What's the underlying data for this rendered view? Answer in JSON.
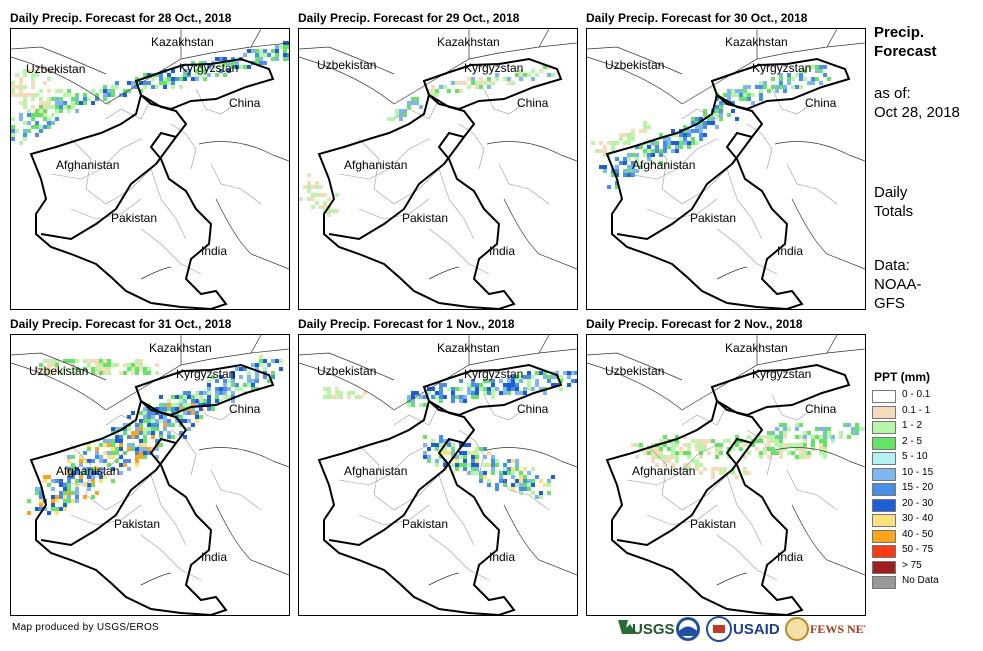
{
  "panels": [
    {
      "title": "Daily Precip. Forecast for 28 Oct., 2018"
    },
    {
      "title": "Daily Precip. Forecast for 29 Oct., 2018"
    },
    {
      "title": "Daily Precip. Forecast for 30 Oct., 2018"
    },
    {
      "title": "Daily Precip. Forecast for 31 Oct., 2018"
    },
    {
      "title": "Daily Precip. Forecast for 1 Nov., 2018"
    },
    {
      "title": "Daily Precip. Forecast for 2 Nov., 2018"
    }
  ],
  "countries": {
    "kazakhstan": "Kazakhstan",
    "uzbekistan": "Uzbekistan",
    "kyrgyzstan": "Kyrgyzstan",
    "china": "China",
    "afghanistan": "Afghanistan",
    "pakistan": "Pakistan",
    "india": "India"
  },
  "side": {
    "title_line1": "Precip.",
    "title_line2": "Forecast",
    "asof_line1": "as of:",
    "asof_line2": "Oct 28, 2018",
    "daily_line1": "Daily",
    "daily_line2": "Totals",
    "data_line1": "Data:",
    "data_line2": "NOAA-",
    "data_line3": "GFS"
  },
  "legend": {
    "title": "PPT (mm)",
    "items": [
      {
        "label": "0 - 0.1",
        "color": "#ffffff"
      },
      {
        "label": "0.1 - 1",
        "color": "#f2ddb8"
      },
      {
        "label": "1 - 2",
        "color": "#b7f5a8"
      },
      {
        "label": "2 - 5",
        "color": "#66e266"
      },
      {
        "label": "5 - 10",
        "color": "#b2f2f5"
      },
      {
        "label": "10 - 15",
        "color": "#7fb6ee"
      },
      {
        "label": "15 - 20",
        "color": "#4a8fe6"
      },
      {
        "label": "20 - 30",
        "color": "#1f5fd6"
      },
      {
        "label": "30 - 40",
        "color": "#fbe27a"
      },
      {
        "label": "40 - 50",
        "color": "#fba61a"
      },
      {
        "label": "50 - 75",
        "color": "#f53c14"
      },
      {
        "label": "> 75",
        "color": "#9e1f1f"
      },
      {
        "label": "No Data",
        "color": "#999999"
      }
    ]
  },
  "credit": "Map produced by USGS/EROS",
  "logos": {
    "usgs": "USGS",
    "usaid": "USAID",
    "fewsnet": "FEWS NET"
  },
  "precip_intensity": [
    "moderate",
    "low",
    "moderate",
    "high",
    "moderate",
    "low"
  ]
}
